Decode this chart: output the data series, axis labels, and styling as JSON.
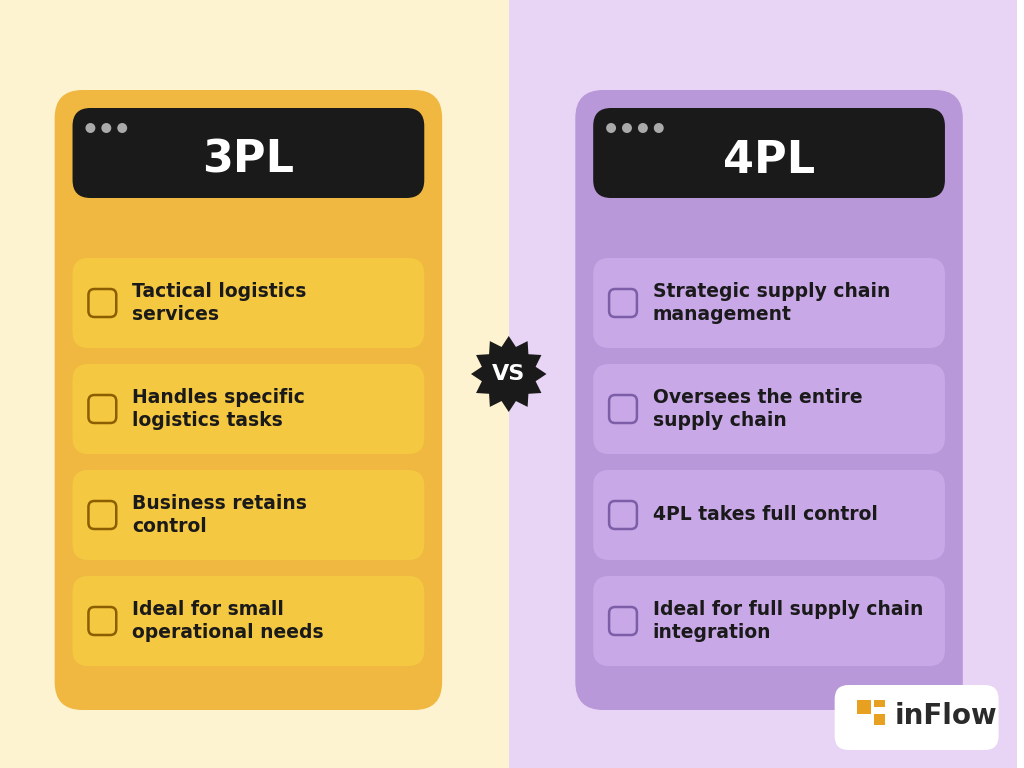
{
  "title_3pl": "3PL",
  "title_4pl": "4PL",
  "bg_left": "#fef3d0",
  "bg_right": "#e8d5f5",
  "card_left_bg": "#f5c842",
  "card_right_bg": "#c9a8e8",
  "header_bg": "#1a1a1a",
  "header_text": "#ffffff",
  "item_left_bg": "#f5c842",
  "item_right_bg": "#c9a8e8",
  "item_text": "#1a1a1a",
  "vs_bg": "#1a1a1a",
  "vs_text": "#ffffff",
  "items_left": [
    "Tactical logistics\nservices",
    "Handles specific\nlogistics tasks",
    "Business retains\ncontrol",
    "Ideal for small\noperational needs"
  ],
  "items_right": [
    "Strategic supply chain\nmanagement",
    "Oversees the entire\nsupply chain",
    "4PL takes full control",
    "Ideal for full supply chain\nintegration"
  ],
  "dots_3pl": 3,
  "dots_4pl": 4,
  "inflow_logo_text": "inFlow",
  "logo_bg": "#ffffff",
  "logo_color": "#e8a020",
  "outer_card_left": "#f0b840",
  "outer_card_right": "#b898d8"
}
